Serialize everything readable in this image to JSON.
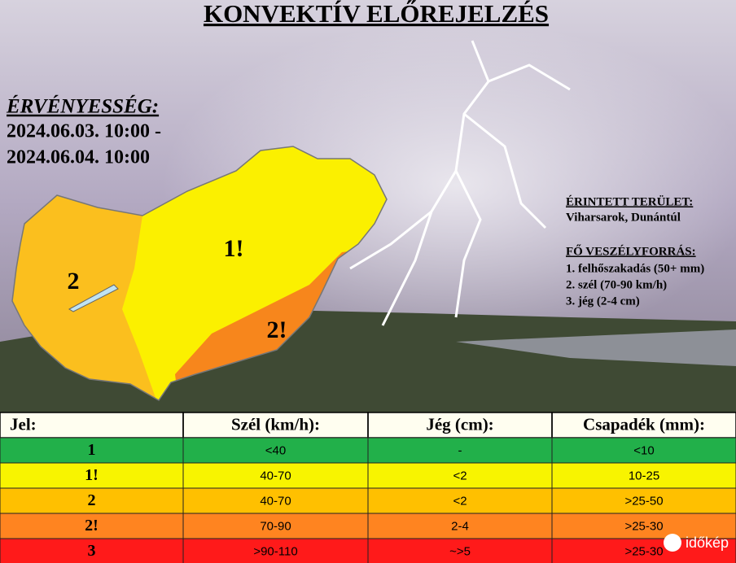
{
  "header": {
    "title": "KONVEKTÍV ELŐREJELZÉS"
  },
  "validity": {
    "label": "ÉRVÉNYESSÉG:",
    "from": "2024.06.03. 10:00 -",
    "to": "2024.06.04. 10:00"
  },
  "area": {
    "label": "ÉRINTETT TERÜLET:",
    "value": "Viharsarok, Dunántúl"
  },
  "hazards": {
    "label": "FŐ VESZÉLYFORRÁS:",
    "items": [
      "1. felhőszakadás (50+ mm)",
      "2. szél (70-90 km/h)",
      "3. jég (2-4 cm)"
    ]
  },
  "map": {
    "zones": [
      {
        "label": "2",
        "color": "#fbbf1e"
      },
      {
        "label": "1!",
        "color": "#fbf000"
      },
      {
        "label": "2!",
        "color": "#f7861c"
      }
    ]
  },
  "table": {
    "header": [
      "Jel:",
      "Szél (km/h):",
      "Jég (cm):",
      "Csapadék (mm):"
    ],
    "rows": [
      {
        "cells": [
          "1",
          "<40",
          "-",
          "<10"
        ],
        "color": "#22b04a"
      },
      {
        "cells": [
          "1!",
          "40-70",
          "<2",
          "10-25"
        ],
        "color": "#f8f400"
      },
      {
        "cells": [
          "2",
          "40-70",
          "<2",
          ">25-50"
        ],
        "color": "#ffc000"
      },
      {
        "cells": [
          "2!",
          "70-90",
          "2-4",
          ">25-30"
        ],
        "color": "#ff8420"
      },
      {
        "cells": [
          "3",
          ">90-110",
          "~>5",
          ">25-30"
        ],
        "color": "#ff1a1a"
      }
    ]
  },
  "logo": {
    "text": "időkép"
  }
}
